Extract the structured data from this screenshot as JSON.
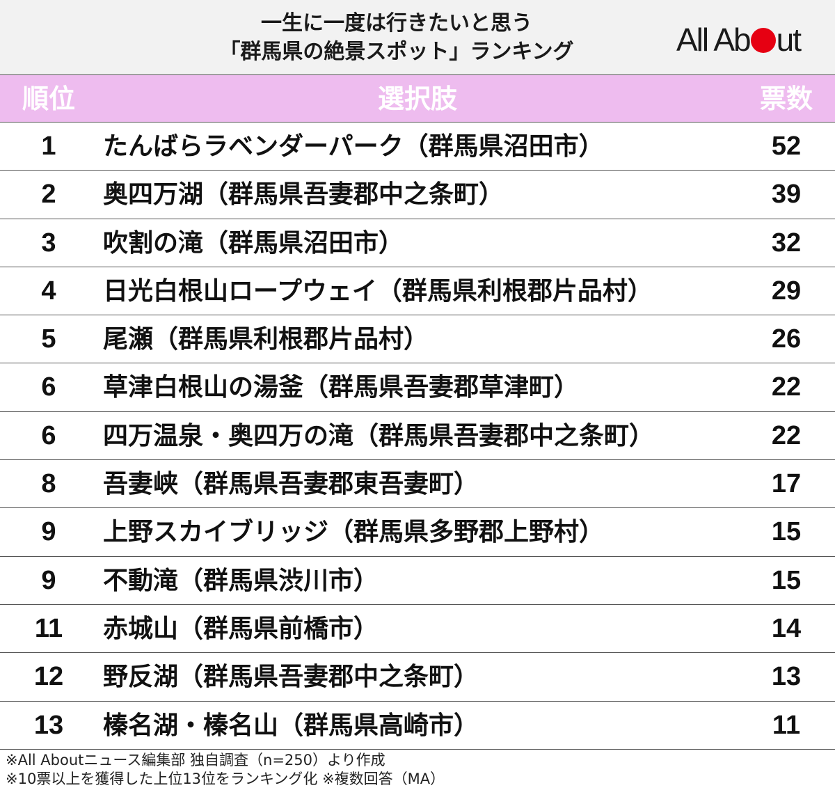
{
  "header": {
    "title_line1": "一生に一度は行きたいと思う",
    "title_line2": "「群馬県の絶景スポット」ランキング",
    "logo_left": "All Ab",
    "logo_right": "ut"
  },
  "columns": {
    "rank": "順位",
    "choice": "選択肢",
    "votes": "票数"
  },
  "colors": {
    "header_band": "#eebcef",
    "logo_dot": "#e60012"
  },
  "chart_data": {
    "type": "table",
    "columns": [
      "順位",
      "選択肢",
      "票数"
    ],
    "rows": [
      {
        "rank": "1",
        "choice": "たんばらラベンダーパーク（群馬県沼田市）",
        "votes": 52
      },
      {
        "rank": "2",
        "choice": "奥四万湖（群馬県吾妻郡中之条町）",
        "votes": 39
      },
      {
        "rank": "3",
        "choice": "吹割の滝（群馬県沼田市）",
        "votes": 32
      },
      {
        "rank": "4",
        "choice": "日光白根山ロープウェイ（群馬県利根郡片品村）",
        "votes": 29
      },
      {
        "rank": "5",
        "choice": "尾瀬（群馬県利根郡片品村）",
        "votes": 26
      },
      {
        "rank": "6",
        "choice": "草津白根山の湯釜（群馬県吾妻郡草津町）",
        "votes": 22
      },
      {
        "rank": "6",
        "choice": "四万温泉・奥四万の滝（群馬県吾妻郡中之条町）",
        "votes": 22
      },
      {
        "rank": "8",
        "choice": "吾妻峡（群馬県吾妻郡東吾妻町）",
        "votes": 17
      },
      {
        "rank": "9",
        "choice": "上野スカイブリッジ（群馬県多野郡上野村）",
        "votes": 15
      },
      {
        "rank": "9",
        "choice": "不動滝（群馬県渋川市）",
        "votes": 15
      },
      {
        "rank": "11",
        "choice": "赤城山（群馬県前橋市）",
        "votes": 14
      },
      {
        "rank": "12",
        "choice": "野反湖（群馬県吾妻郡中之条町）",
        "votes": 13
      },
      {
        "rank": "13",
        "choice": "榛名湖・榛名山（群馬県高崎市）",
        "votes": 11
      }
    ]
  },
  "notes": [
    "※All Aboutニュース編集部 独自調査（n=250）より作成",
    "※10票以上を獲得した上位13位をランキング化 ※複数回答（MA）"
  ]
}
